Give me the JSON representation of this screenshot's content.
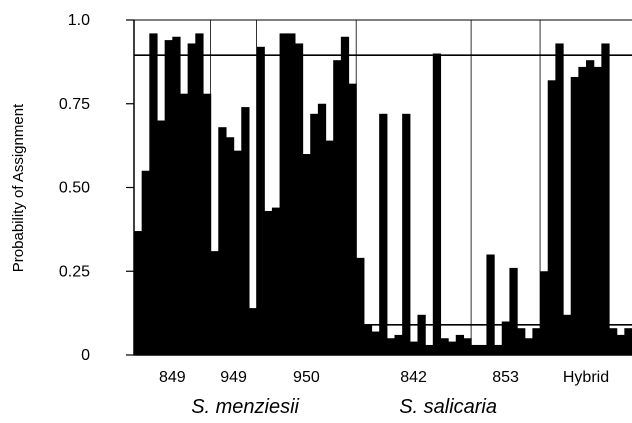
{
  "chart_data": {
    "type": "bar",
    "ylabel": "Probability of Assignment",
    "ylim": [
      0,
      1.0
    ],
    "yticks": [
      {
        "value": 0,
        "label": "0"
      },
      {
        "value": 0.25,
        "label": "0.25"
      },
      {
        "value": 0.5,
        "label": "0.50"
      },
      {
        "value": 0.75,
        "label": "0.75"
      },
      {
        "value": 1.0,
        "label": "1.0"
      }
    ],
    "bar_color": "#000000",
    "groups": [
      {
        "label": "849",
        "count": 10,
        "values": [
          0.37,
          0.55,
          0.96,
          0.7,
          0.94,
          0.95,
          0.78,
          0.93,
          0.96,
          0.78
        ]
      },
      {
        "label": "949",
        "count": 6,
        "values": [
          0.31,
          0.68,
          0.65,
          0.61,
          0.74,
          0.14
        ]
      },
      {
        "label": "950",
        "count": 13,
        "values": [
          0.92,
          0.43,
          0.44,
          0.96,
          0.96,
          0.93,
          0.6,
          0.72,
          0.75,
          0.64,
          0.88,
          0.95,
          0.81
        ]
      },
      {
        "label": "842",
        "count": 15,
        "values": [
          0.29,
          0.09,
          0.07,
          0.72,
          0.05,
          0.06,
          0.72,
          0.04,
          0.12,
          0.03,
          0.9,
          0.05,
          0.04,
          0.06,
          0.05
        ]
      },
      {
        "label": "853",
        "count": 9,
        "values": [
          0.03,
          0.03,
          0.3,
          0.03,
          0.1,
          0.26,
          0.08,
          0.05,
          0.08
        ]
      },
      {
        "label": "Hybrid",
        "count": 12,
        "values": [
          0.25,
          0.82,
          0.93,
          0.12,
          0.83,
          0.86,
          0.88,
          0.86,
          0.93,
          0.08,
          0.06,
          0.08
        ]
      }
    ],
    "threshold_lines": [
      0.895,
      0.09
    ],
    "species": [
      {
        "label": "S. menziesii",
        "groups": [
          "849",
          "949",
          "950"
        ]
      },
      {
        "label": "S. salicaria",
        "groups": [
          "842",
          "853"
        ]
      }
    ]
  }
}
